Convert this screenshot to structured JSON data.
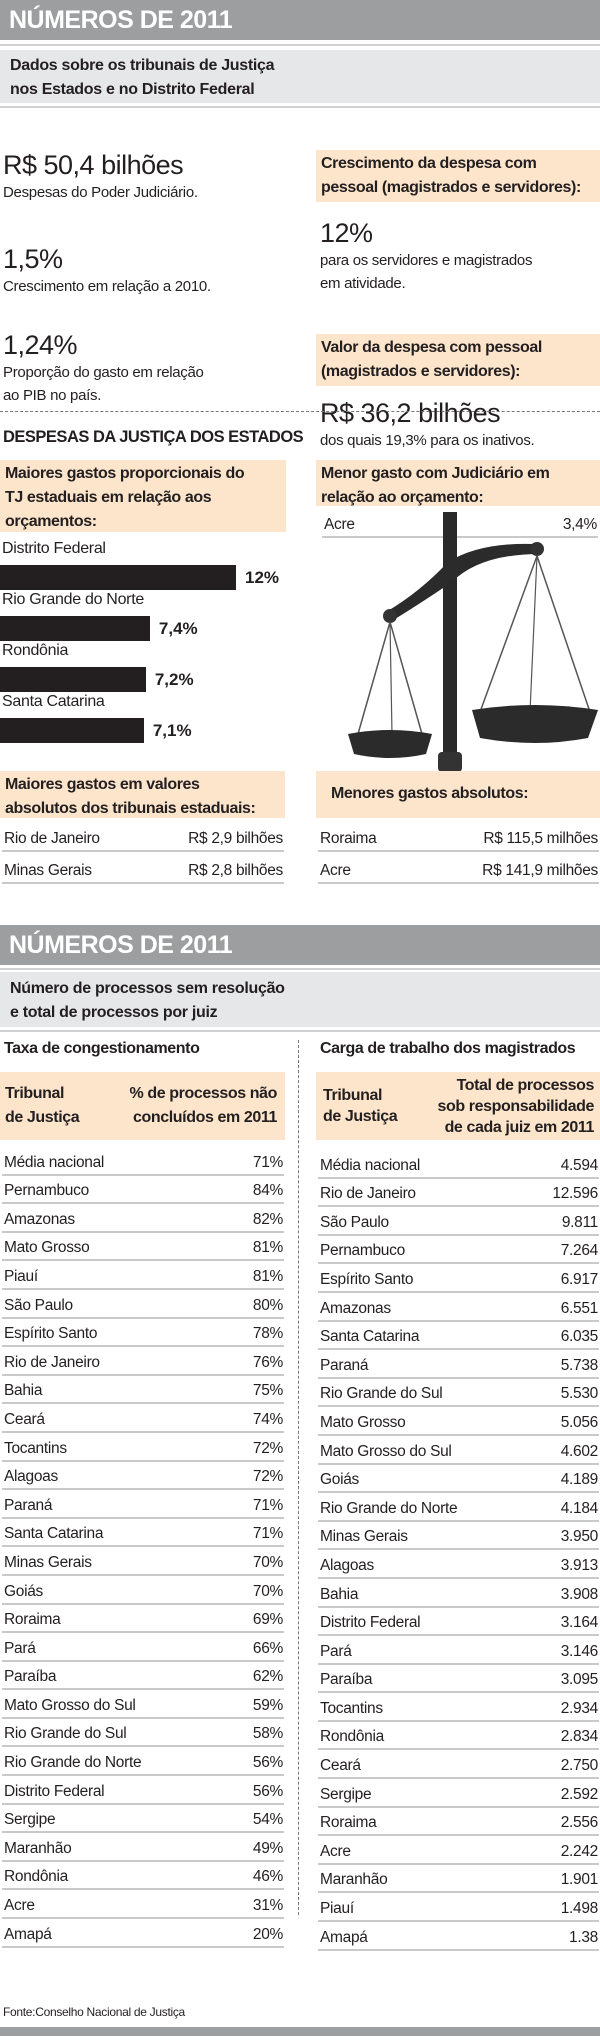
{
  "section1": {
    "header": "NÚMEROS DE 2011",
    "subtitle": [
      "Dados sobre os tribunais de Justiça",
      "nos Estados e no Distrito Federal"
    ],
    "stats": [
      {
        "value": "R$ 50,4 bilhões",
        "desc": [
          "Despesas do Poder Judiciário."
        ]
      },
      {
        "value": "1,5%",
        "desc": [
          "Crescimento em relação a 2010."
        ]
      },
      {
        "value": "1,24%",
        "desc": [
          "Proporção do gasto em relação",
          "ao PIB no país."
        ]
      }
    ],
    "right": [
      {
        "title": [
          "Crescimento da despesa com",
          "pessoal (magistrados e servidores):"
        ],
        "value": "12%",
        "desc": [
          "para os servidores e magistrados",
          "em atividade."
        ]
      },
      {
        "title": [
          "Valor da despesa com pessoal",
          "(magistrados e servidores):"
        ],
        "value": "R$ 36,2 bilhões",
        "desc": [
          "dos quais 19,3% para os inativos."
        ]
      }
    ]
  },
  "section2": {
    "title": "DESPESAS DA JUSTIÇA DOS ESTADOS",
    "prop_title": [
      "Maiores gastos proporcionais do",
      "TJ estaduais em relação aos",
      "orçamentos:"
    ],
    "chart_data": {
      "type": "bar",
      "categories": [
        "Distrito Federal",
        "Rio Grande do Norte",
        "Rondônia",
        "Santa Catarina"
      ],
      "values": [
        12,
        7.4,
        7.2,
        7.1
      ],
      "labels": [
        "12%",
        "7,4%",
        "7,2%",
        "7,1%"
      ]
    },
    "menor_title": [
      "Menor gasto com Judiciário em",
      "relação ao orçamento:"
    ],
    "menor_row": {
      "name": "Acre",
      "value": "3,4%"
    },
    "abs_max_title": [
      "Maiores gastos em valores",
      "absolutos dos tribunais estaduais:"
    ],
    "abs_max": [
      {
        "name": "Rio de Janeiro",
        "value": "R$ 2,9 bilhões"
      },
      {
        "name": "Minas Gerais",
        "value": "R$ 2,8 bilhões"
      }
    ],
    "abs_min_title": "Menores gastos absolutos:",
    "abs_min": [
      {
        "name": "Roraima",
        "value": "R$ 115,5 milhões"
      },
      {
        "name": "Acre",
        "value": "R$ 141,9 milhões"
      }
    ]
  },
  "section3": {
    "header": "NÚMEROS DE 2011",
    "subtitle": [
      "Número de processos sem resolução",
      "e total de processos por juiz"
    ],
    "left": {
      "title": "Taxa de congestionamento",
      "col1": [
        "Tribunal",
        "de Justiça"
      ],
      "col2": [
        "% de processos não",
        "concluídos em 2011"
      ],
      "rows": [
        [
          "Média nacional",
          "71%"
        ],
        [
          "Pernambuco",
          "84%"
        ],
        [
          "Amazonas",
          "82%"
        ],
        [
          "Mato Grosso",
          "81%"
        ],
        [
          "Piauí",
          "81%"
        ],
        [
          "São Paulo",
          "80%"
        ],
        [
          "Espírito Santo",
          "78%"
        ],
        [
          "Rio de Janeiro",
          "76%"
        ],
        [
          "Bahia",
          "75%"
        ],
        [
          "Ceará",
          "74%"
        ],
        [
          "Tocantins",
          "72%"
        ],
        [
          "Alagoas",
          "72%"
        ],
        [
          "Paraná",
          "71%"
        ],
        [
          "Santa Catarina",
          "71%"
        ],
        [
          "Minas Gerais",
          "70%"
        ],
        [
          "Goiás",
          "70%"
        ],
        [
          "Roraima",
          "69%"
        ],
        [
          "Pará",
          "66%"
        ],
        [
          "Paraíba",
          "62%"
        ],
        [
          "Mato Grosso do Sul",
          "59%"
        ],
        [
          "Rio Grande do Sul",
          "58%"
        ],
        [
          "Rio Grande do Norte",
          "56%"
        ],
        [
          "Distrito Federal",
          "56%"
        ],
        [
          "Sergipe",
          "54%"
        ],
        [
          "Maranhão",
          "49%"
        ],
        [
          "Rondônia",
          "46%"
        ],
        [
          "Acre",
          "31%"
        ],
        [
          "Amapá",
          "20%"
        ]
      ]
    },
    "right": {
      "title": "Carga de trabalho dos magistrados",
      "col1": [
        "Tribunal",
        "de Justiça"
      ],
      "col2": [
        "Total de processos",
        "sob responsabilidade",
        "de cada juiz em 2011"
      ],
      "rows": [
        [
          "Média nacional",
          "4.594"
        ],
        [
          "Rio de Janeiro",
          "12.596"
        ],
        [
          "São Paulo",
          "9.811"
        ],
        [
          "Pernambuco",
          "7.264"
        ],
        [
          "Espírito Santo",
          "6.917"
        ],
        [
          "Amazonas",
          "6.551"
        ],
        [
          "Santa Catarina",
          "6.035"
        ],
        [
          "Paraná",
          "5.738"
        ],
        [
          "Rio Grande do Sul",
          "5.530"
        ],
        [
          "Mato Grosso",
          "5.056"
        ],
        [
          "Mato Grosso do Sul",
          "4.602"
        ],
        [
          "Goiás",
          "4.189"
        ],
        [
          "Rio Grande do Norte",
          "4.184"
        ],
        [
          "Minas Gerais",
          "3.950"
        ],
        [
          "Alagoas",
          "3.913"
        ],
        [
          "Bahia",
          "3.908"
        ],
        [
          "Distrito Federal",
          "3.164"
        ],
        [
          "Pará",
          "3.146"
        ],
        [
          "Paraíba",
          "3.095"
        ],
        [
          "Tocantins",
          "2.934"
        ],
        [
          "Rondônia",
          "2.834"
        ],
        [
          "Ceará",
          "2.750"
        ],
        [
          "Sergipe",
          "2.592"
        ],
        [
          "Roraima",
          "2.556"
        ],
        [
          "Acre",
          "2.242"
        ],
        [
          "Maranhão",
          "1.901"
        ],
        [
          "Piauí",
          "1.498"
        ],
        [
          "Amapá",
          "1.38"
        ]
      ]
    }
  },
  "footer": "Fonte:Conselho Nacional de Justiça",
  "colors": {
    "header": "#9d9ea0",
    "subtitle_bg": "#e6e7e8",
    "peach": "#fde5cc",
    "bar": "#231f20"
  }
}
